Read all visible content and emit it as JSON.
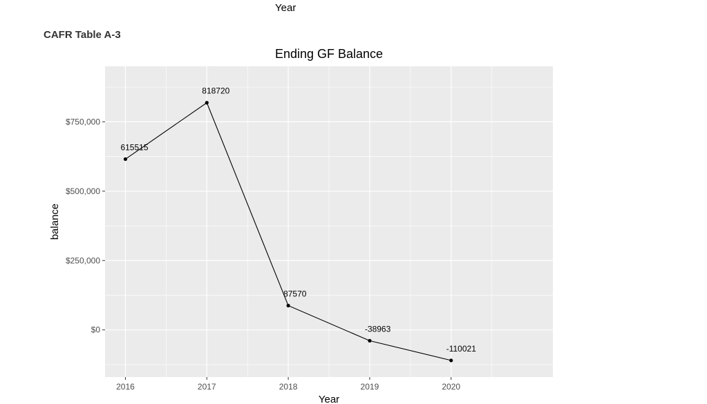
{
  "header": {
    "top_label": "Year",
    "section_title": "CAFR Table A-3"
  },
  "chart_data": {
    "type": "line",
    "title": "Ending GF Balance",
    "xlabel": "Year",
    "ylabel": "balance",
    "x": [
      2016,
      2017,
      2018,
      2019,
      2020
    ],
    "y": [
      615515,
      818720,
      87570,
      -38963,
      -110021
    ],
    "data_labels": [
      "615515",
      "818720",
      "87570",
      "-38963",
      "-110021"
    ],
    "x_ticks": [
      "2016",
      "2017",
      "2018",
      "2019",
      "2020"
    ],
    "y_ticks": [
      0,
      250000,
      500000,
      750000
    ],
    "y_tick_labels": [
      "$0",
      "$250,000",
      "$500,000",
      "$750,000"
    ],
    "xlim": [
      2015.75,
      2021.25
    ],
    "ylim": [
      -170000,
      950000
    ],
    "grid": true,
    "colors": {
      "panel": "#ebebeb",
      "grid": "#ffffff",
      "line": "#000000"
    }
  }
}
